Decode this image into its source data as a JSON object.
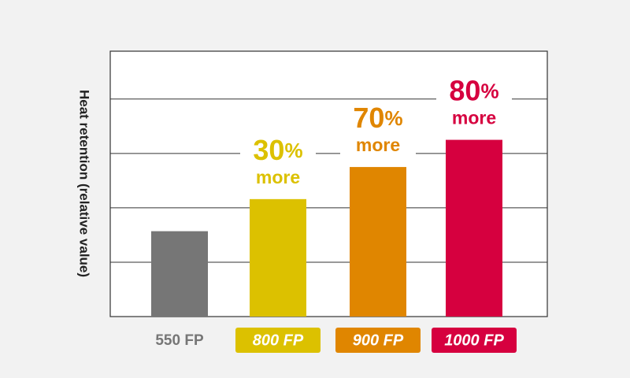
{
  "chart_data": {
    "type": "bar",
    "y_label": "Heat retention (relative value)",
    "categories": [
      "550 FP",
      "800 FP",
      "900 FP",
      "1000 FP"
    ],
    "values": [
      1.57,
      2.16,
      2.75,
      3.25
    ],
    "colors": [
      "#767676",
      "#dcc100",
      "#e08600",
      "#d6003f"
    ],
    "annotations": [
      [
        "30%",
        "more"
      ],
      [
        "70%",
        "more"
      ],
      [
        "80%",
        "more"
      ]
    ],
    "ylim": [
      0,
      4.88
    ],
    "yticks": [
      0,
      1,
      2,
      3,
      4
    ],
    "grid": true
  }
}
